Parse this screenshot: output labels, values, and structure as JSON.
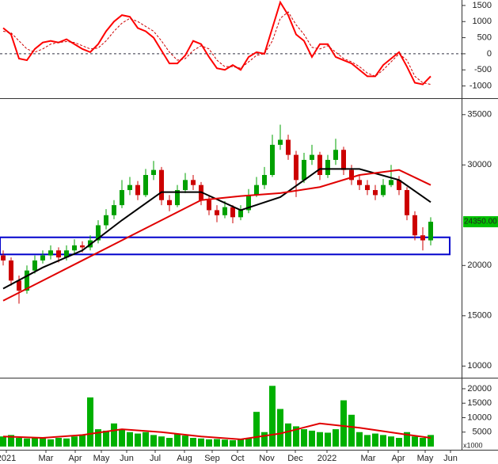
{
  "chart_data": [
    {
      "type": "line",
      "xlim": [
        -0.4,
        57.9
      ],
      "ylim": [
        -1330,
        1670
      ],
      "yticks": [
        -1000,
        -500,
        0,
        500,
        1000,
        1500
      ],
      "zero_line": true,
      "x": [
        0,
        1,
        2,
        3,
        4,
        5,
        6,
        7,
        8,
        9,
        10,
        11,
        12,
        13,
        14,
        15,
        16,
        17,
        18,
        19,
        20,
        21,
        22,
        23,
        24,
        25,
        26,
        27,
        28,
        29,
        30,
        31,
        32,
        33,
        34,
        35,
        36,
        37,
        38,
        39,
        40,
        41,
        42,
        43,
        44,
        45,
        46,
        47,
        48,
        49,
        50,
        51,
        52,
        53,
        54
      ],
      "series": [
        {
          "color": "#ff0000",
          "dash": false,
          "values": [
            800,
            600,
            -150,
            -200,
            150,
            350,
            400,
            350,
            450,
            300,
            150,
            50,
            300,
            700,
            1000,
            1200,
            1150,
            800,
            700,
            500,
            100,
            -300,
            -300,
            -50,
            400,
            300,
            -100,
            -450,
            -500,
            -350,
            -500,
            -100,
            50,
            0,
            800,
            1600,
            1200,
            600,
            400,
            -100,
            300,
            300,
            -100,
            -200,
            -300,
            -500,
            -700,
            -700,
            -350,
            -150,
            50,
            -400,
            -900,
            -950,
            -700
          ]
        },
        {
          "color": "#cc0000",
          "dash": true,
          "values": [
            700,
            650,
            400,
            150,
            50,
            150,
            300,
            350,
            380,
            350,
            250,
            150,
            180,
            400,
            700,
            950,
            1100,
            1000,
            850,
            700,
            400,
            50,
            -200,
            -150,
            100,
            250,
            150,
            -200,
            -400,
            -400,
            -450,
            -250,
            -50,
            0,
            400,
            1100,
            1300,
            900,
            600,
            200,
            150,
            250,
            50,
            -150,
            -250,
            -400,
            -600,
            -700,
            -500,
            -250,
            0,
            -200,
            -700,
            -900,
            -950
          ]
        }
      ]
    },
    {
      "type": "candlestick",
      "xlim": [
        -0.4,
        57.9
      ],
      "ylim": [
        9000,
        36400
      ],
      "yticks": [
        10000,
        15000,
        20000,
        30000,
        35000
      ],
      "up_color": "#00a000",
      "down_color": "#cc0000",
      "x": [
        0,
        1,
        2,
        3,
        4,
        5,
        6,
        7,
        8,
        9,
        10,
        11,
        12,
        13,
        14,
        15,
        16,
        17,
        18,
        19,
        20,
        21,
        22,
        23,
        24,
        25,
        26,
        27,
        28,
        29,
        30,
        31,
        32,
        33,
        34,
        35,
        36,
        37,
        38,
        39,
        40,
        41,
        42,
        43,
        44,
        45,
        46,
        47,
        48,
        49,
        50,
        51,
        52,
        53,
        54
      ],
      "ohlc": [
        [
          21000,
          21500,
          20000,
          20500
        ],
        [
          20500,
          20800,
          18000,
          18500
        ],
        [
          18500,
          19000,
          16200,
          17500
        ],
        [
          17500,
          20000,
          17200,
          19500
        ],
        [
          19500,
          21000,
          19200,
          20500
        ],
        [
          20500,
          21500,
          20200,
          21000
        ],
        [
          21000,
          22000,
          20600,
          21500
        ],
        [
          21500,
          21800,
          20300,
          20800
        ],
        [
          20800,
          22000,
          20500,
          21500
        ],
        [
          21500,
          22600,
          21200,
          22000
        ],
        [
          22000,
          22400,
          21300,
          21800
        ],
        [
          21800,
          23000,
          21500,
          22500
        ],
        [
          22500,
          24500,
          22200,
          24000
        ],
        [
          24000,
          25600,
          23600,
          25000
        ],
        [
          25000,
          26500,
          24600,
          26000
        ],
        [
          26000,
          28500,
          25700,
          27500
        ],
        [
          27500,
          28800,
          27000,
          28000
        ],
        [
          28000,
          28400,
          26500,
          27000
        ],
        [
          27000,
          29600,
          26800,
          29000
        ],
        [
          29000,
          30400,
          28500,
          29500
        ],
        [
          29500,
          29800,
          26000,
          26500
        ],
        [
          26500,
          27000,
          25400,
          26000
        ],
        [
          26000,
          28000,
          25800,
          27500
        ],
        [
          27500,
          29200,
          27200,
          28500
        ],
        [
          28500,
          29000,
          27500,
          28000
        ],
        [
          28000,
          28300,
          26000,
          26500
        ],
        [
          26500,
          27000,
          25000,
          25500
        ],
        [
          25500,
          26000,
          24300,
          25000
        ],
        [
          25000,
          26400,
          24700,
          25800
        ],
        [
          25800,
          26000,
          24200,
          24800
        ],
        [
          24800,
          26000,
          24500,
          25500
        ],
        [
          25500,
          27600,
          25200,
          27000
        ],
        [
          27000,
          28800,
          26800,
          28000
        ],
        [
          28000,
          29800,
          27600,
          29000
        ],
        [
          29000,
          33000,
          28800,
          32000
        ],
        [
          32000,
          34000,
          31500,
          32500
        ],
        [
          32500,
          33000,
          30500,
          31000
        ],
        [
          31000,
          31400,
          26800,
          28500
        ],
        [
          28500,
          31200,
          28200,
          30500
        ],
        [
          30500,
          32000,
          30000,
          31000
        ],
        [
          31000,
          31300,
          28500,
          29000
        ],
        [
          29000,
          31000,
          28700,
          30500
        ],
        [
          30500,
          32600,
          30000,
          31500
        ],
        [
          31500,
          31800,
          29000,
          29500
        ],
        [
          29500,
          30000,
          28000,
          28500
        ],
        [
          28500,
          29000,
          27500,
          28000
        ],
        [
          28000,
          28500,
          27000,
          27500
        ],
        [
          27500,
          28000,
          26500,
          27000
        ],
        [
          27000,
          28600,
          26800,
          28000
        ],
        [
          28000,
          30000,
          27800,
          28500
        ],
        [
          28500,
          28900,
          27000,
          27500
        ],
        [
          27500,
          27800,
          24500,
          25000
        ],
        [
          25000,
          25400,
          22500,
          23000
        ],
        [
          23000,
          23800,
          21500,
          22500
        ],
        [
          22500,
          24800,
          22000,
          24350
        ]
      ],
      "series": [
        {
          "color": "#000000",
          "x": [
            0,
            5,
            10,
            15,
            20,
            25,
            30,
            35,
            40,
            45,
            50,
            54
          ],
          "values": [
            17700,
            19800,
            21500,
            24500,
            27300,
            27300,
            25500,
            26800,
            29600,
            29600,
            28500,
            26300
          ]
        },
        {
          "color": "#e00000",
          "x": [
            0,
            5,
            10,
            15,
            20,
            25,
            30,
            35,
            40,
            45,
            50,
            54
          ],
          "values": [
            16500,
            18500,
            20500,
            22500,
            24500,
            26500,
            26900,
            27200,
            27800,
            29000,
            29500,
            28000
          ]
        }
      ],
      "zone": {
        "x": [
          -0.4,
          56.4
        ],
        "y": [
          21100,
          22800
        ],
        "color": "#0000cc"
      },
      "last_price": {
        "value": 24350,
        "label": "24350.00"
      }
    },
    {
      "type": "bar",
      "xlim": [
        -0.4,
        57.9
      ],
      "ylim": [
        -1100,
        23000
      ],
      "yticks": [
        5000,
        10000,
        15000,
        20000
      ],
      "color": "#00b000",
      "unit_label": "x1000",
      "x": [
        0,
        1,
        2,
        3,
        4,
        5,
        6,
        7,
        8,
        9,
        10,
        11,
        12,
        13,
        14,
        15,
        16,
        17,
        18,
        19,
        20,
        21,
        22,
        23,
        24,
        25,
        26,
        27,
        28,
        29,
        30,
        31,
        32,
        33,
        34,
        35,
        36,
        37,
        38,
        39,
        40,
        41,
        42,
        43,
        44,
        45,
        46,
        47,
        48,
        49,
        50,
        51,
        52,
        53,
        54
      ],
      "values": [
        3500,
        4000,
        3000,
        2800,
        3200,
        3000,
        2500,
        3000,
        2800,
        3500,
        4000,
        17000,
        6000,
        5500,
        8000,
        6000,
        5000,
        4500,
        5000,
        4000,
        3500,
        3000,
        4500,
        3800,
        3000,
        2800,
        2500,
        2600,
        2400,
        2200,
        2500,
        3000,
        12000,
        5000,
        21000,
        13000,
        8000,
        7000,
        6000,
        5500,
        5000,
        4800,
        6000,
        16000,
        11000,
        5000,
        4000,
        4500,
        4000,
        3500,
        3000,
        5000,
        3500,
        3000,
        4000
      ],
      "series": [
        {
          "color": "#e00000",
          "x": [
            0,
            5,
            10,
            15,
            20,
            25,
            30,
            35,
            40,
            45,
            50,
            54
          ],
          "values": [
            3500,
            3000,
            4000,
            6000,
            5000,
            3500,
            2500,
            4500,
            8000,
            6500,
            4500,
            3000
          ]
        }
      ],
      "xticks": [
        {
          "value": 0.4,
          "label": "2021"
        },
        {
          "value": 5.4,
          "label": "Mar"
        },
        {
          "value": 9.1,
          "label": "Apr"
        },
        {
          "value": 12.4,
          "label": "May"
        },
        {
          "value": 15.6,
          "label": "Jun"
        },
        {
          "value": 19.2,
          "label": "Jul"
        },
        {
          "value": 22.9,
          "label": "Aug"
        },
        {
          "value": 26.4,
          "label": "Sep"
        },
        {
          "value": 29.6,
          "label": "Oct"
        },
        {
          "value": 33.3,
          "label": "Nov"
        },
        {
          "value": 36.9,
          "label": "Dec"
        },
        {
          "value": 40.9,
          "label": "2022"
        },
        {
          "value": 46.1,
          "label": "Mar"
        },
        {
          "value": 49.9,
          "label": "Apr"
        },
        {
          "value": 53.3,
          "label": "May"
        },
        {
          "value": 56.5,
          "label": "Jun"
        }
      ]
    }
  ]
}
